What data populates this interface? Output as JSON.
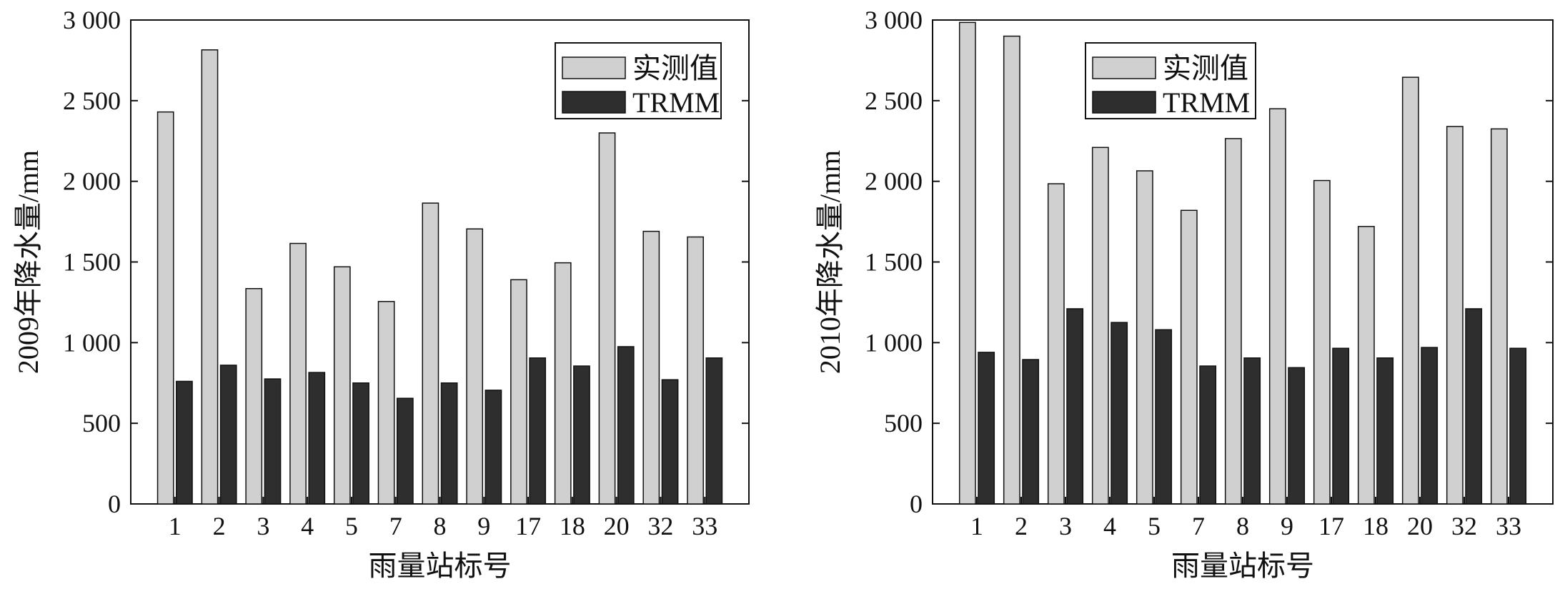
{
  "colors": {
    "measured_fill": "#d0d0d0",
    "trmm_fill": "#2e2e2e",
    "stroke": "#111111",
    "background": "#ffffff"
  },
  "chart_data": [
    {
      "type": "bar",
      "xlabel": "雨量站标号",
      "ylabel": "2009年降水量/mm",
      "ylim": [
        0,
        3000
      ],
      "yticks": [
        "0",
        "500",
        "1 000",
        "1 500",
        "2 000",
        "2 500",
        "3 000"
      ],
      "yticks_values": [
        0,
        500,
        1000,
        1500,
        2000,
        2500,
        3000
      ],
      "categories": [
        "1",
        "2",
        "3",
        "4",
        "5",
        "7",
        "8",
        "9",
        "17",
        "18",
        "20",
        "32",
        "33"
      ],
      "legend_position": "top-right",
      "grid": false,
      "series": [
        {
          "name": "实测值",
          "values": [
            2430,
            2815,
            1335,
            1615,
            1470,
            1255,
            1865,
            1705,
            1390,
            1495,
            2300,
            1690,
            1655
          ]
        },
        {
          "name": "TRMM",
          "values": [
            760,
            860,
            775,
            815,
            750,
            655,
            750,
            705,
            905,
            855,
            975,
            770,
            905
          ]
        }
      ]
    },
    {
      "type": "bar",
      "xlabel": "雨量站标号",
      "ylabel": "2010年降水量/mm",
      "ylim": [
        0,
        3000
      ],
      "yticks": [
        "0",
        "500",
        "1 000",
        "1 500",
        "2 000",
        "2 500",
        "3 000"
      ],
      "yticks_values": [
        0,
        500,
        1000,
        1500,
        2000,
        2500,
        3000
      ],
      "categories": [
        "1",
        "2",
        "3",
        "4",
        "5",
        "7",
        "8",
        "9",
        "17",
        "18",
        "20",
        "32",
        "33"
      ],
      "legend_position": "top-left",
      "grid": false,
      "series": [
        {
          "name": "实测值",
          "values": [
            2985,
            2900,
            1985,
            2210,
            2065,
            1820,
            2265,
            2450,
            2005,
            1720,
            2645,
            2340,
            2325
          ]
        },
        {
          "name": "TRMM",
          "values": [
            940,
            895,
            1210,
            1125,
            1080,
            855,
            905,
            845,
            965,
            905,
            970,
            1210,
            965
          ]
        }
      ]
    }
  ]
}
